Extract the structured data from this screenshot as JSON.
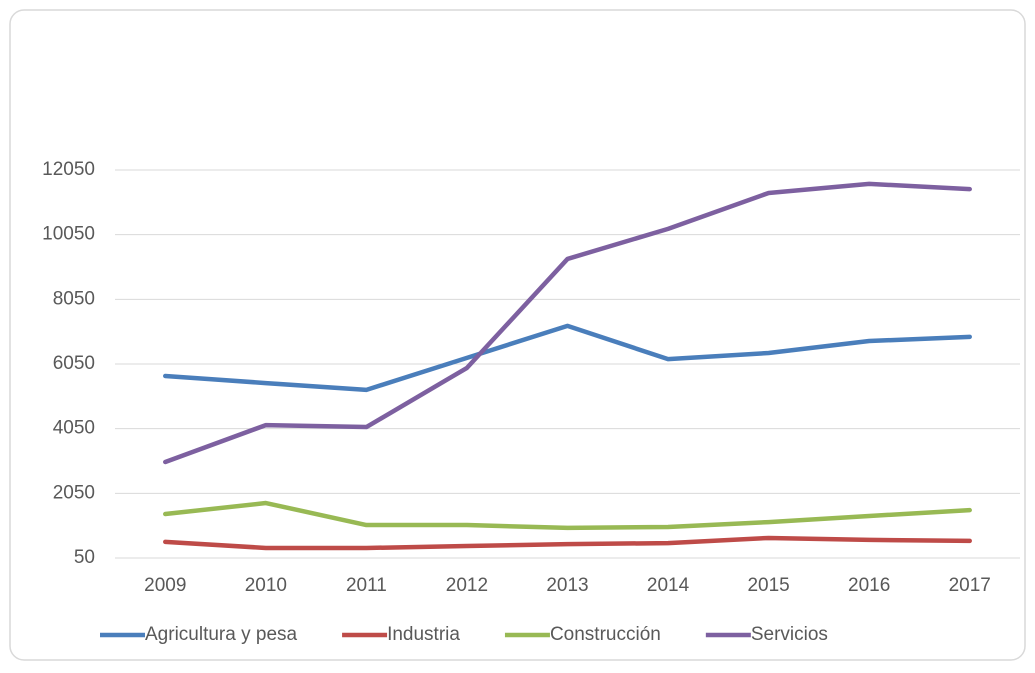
{
  "chart_data": {
    "type": "line",
    "categories": [
      "2009",
      "2010",
      "2011",
      "2012",
      "2013",
      "2014",
      "2015",
      "2016",
      "2017"
    ],
    "series": [
      {
        "name": "Agricultura y pesa",
        "color": "#4a7ebb",
        "values": [
          5680,
          5460,
          5250,
          6240,
          7230,
          6200,
          6390,
          6760,
          6890
        ]
      },
      {
        "name": "Industria",
        "color": "#be4b48",
        "values": [
          550,
          360,
          360,
          420,
          480,
          510,
          670,
          610,
          580
        ]
      },
      {
        "name": "Construcción",
        "color": "#98b954",
        "values": [
          1410,
          1750,
          1070,
          1070,
          980,
          1010,
          1160,
          1350,
          1530
        ]
      },
      {
        "name": "Servicios",
        "color": "#7d60a0",
        "values": [
          3020,
          4160,
          4100,
          5930,
          9300,
          10230,
          11340,
          11620,
          11460
        ]
      }
    ],
    "ylim": [
      50,
      12050
    ],
    "yticks": [
      50,
      2050,
      4050,
      6050,
      8050,
      10050,
      12050
    ],
    "grid": true,
    "legend": "bottom"
  }
}
